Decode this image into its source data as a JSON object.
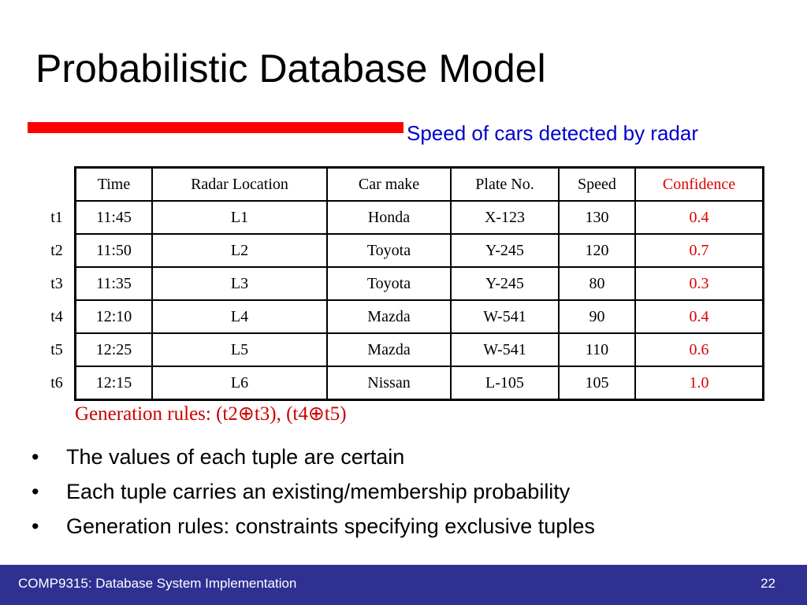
{
  "slide": {
    "title": "Probabilistic Database Model",
    "caption": "Speed of cars detected by radar",
    "generation_rules": "Generation rules: (t2⊕t3), (t4⊕t5)"
  },
  "table": {
    "headers": [
      "Time",
      "Radar Location",
      "Car make",
      "Plate No.",
      "Speed",
      "Confidence"
    ],
    "rows": [
      {
        "id": "t1",
        "cells": [
          "11:45",
          "L1",
          "Honda",
          "X-123",
          "130",
          "0.4"
        ]
      },
      {
        "id": "t2",
        "cells": [
          "11:50",
          "L2",
          "Toyota",
          "Y-245",
          "120",
          "0.7"
        ]
      },
      {
        "id": "t3",
        "cells": [
          "11:35",
          "L3",
          "Toyota",
          "Y-245",
          "80",
          "0.3"
        ]
      },
      {
        "id": "t4",
        "cells": [
          "12:10",
          "L4",
          "Mazda",
          "W-541",
          "90",
          "0.4"
        ]
      },
      {
        "id": "t5",
        "cells": [
          "12:25",
          "L5",
          "Mazda",
          "W-541",
          "110",
          "0.6"
        ]
      },
      {
        "id": "t6",
        "cells": [
          "12:15",
          "L6",
          "Nissan",
          "L-105",
          "105",
          "1.0"
        ]
      }
    ]
  },
  "bullets": [
    "The values of each tuple are certain",
    "Each tuple carries an existing/membership probability",
    "Generation rules: constraints specifying exclusive tuples"
  ],
  "footer": {
    "course": "COMP9315: Database System Implementation",
    "page_number": "22"
  },
  "colors": {
    "rule_bar": "#ff0000",
    "caption": "#0000cc",
    "confidence": "#dd0000",
    "footer_bg": "#2e3192"
  }
}
